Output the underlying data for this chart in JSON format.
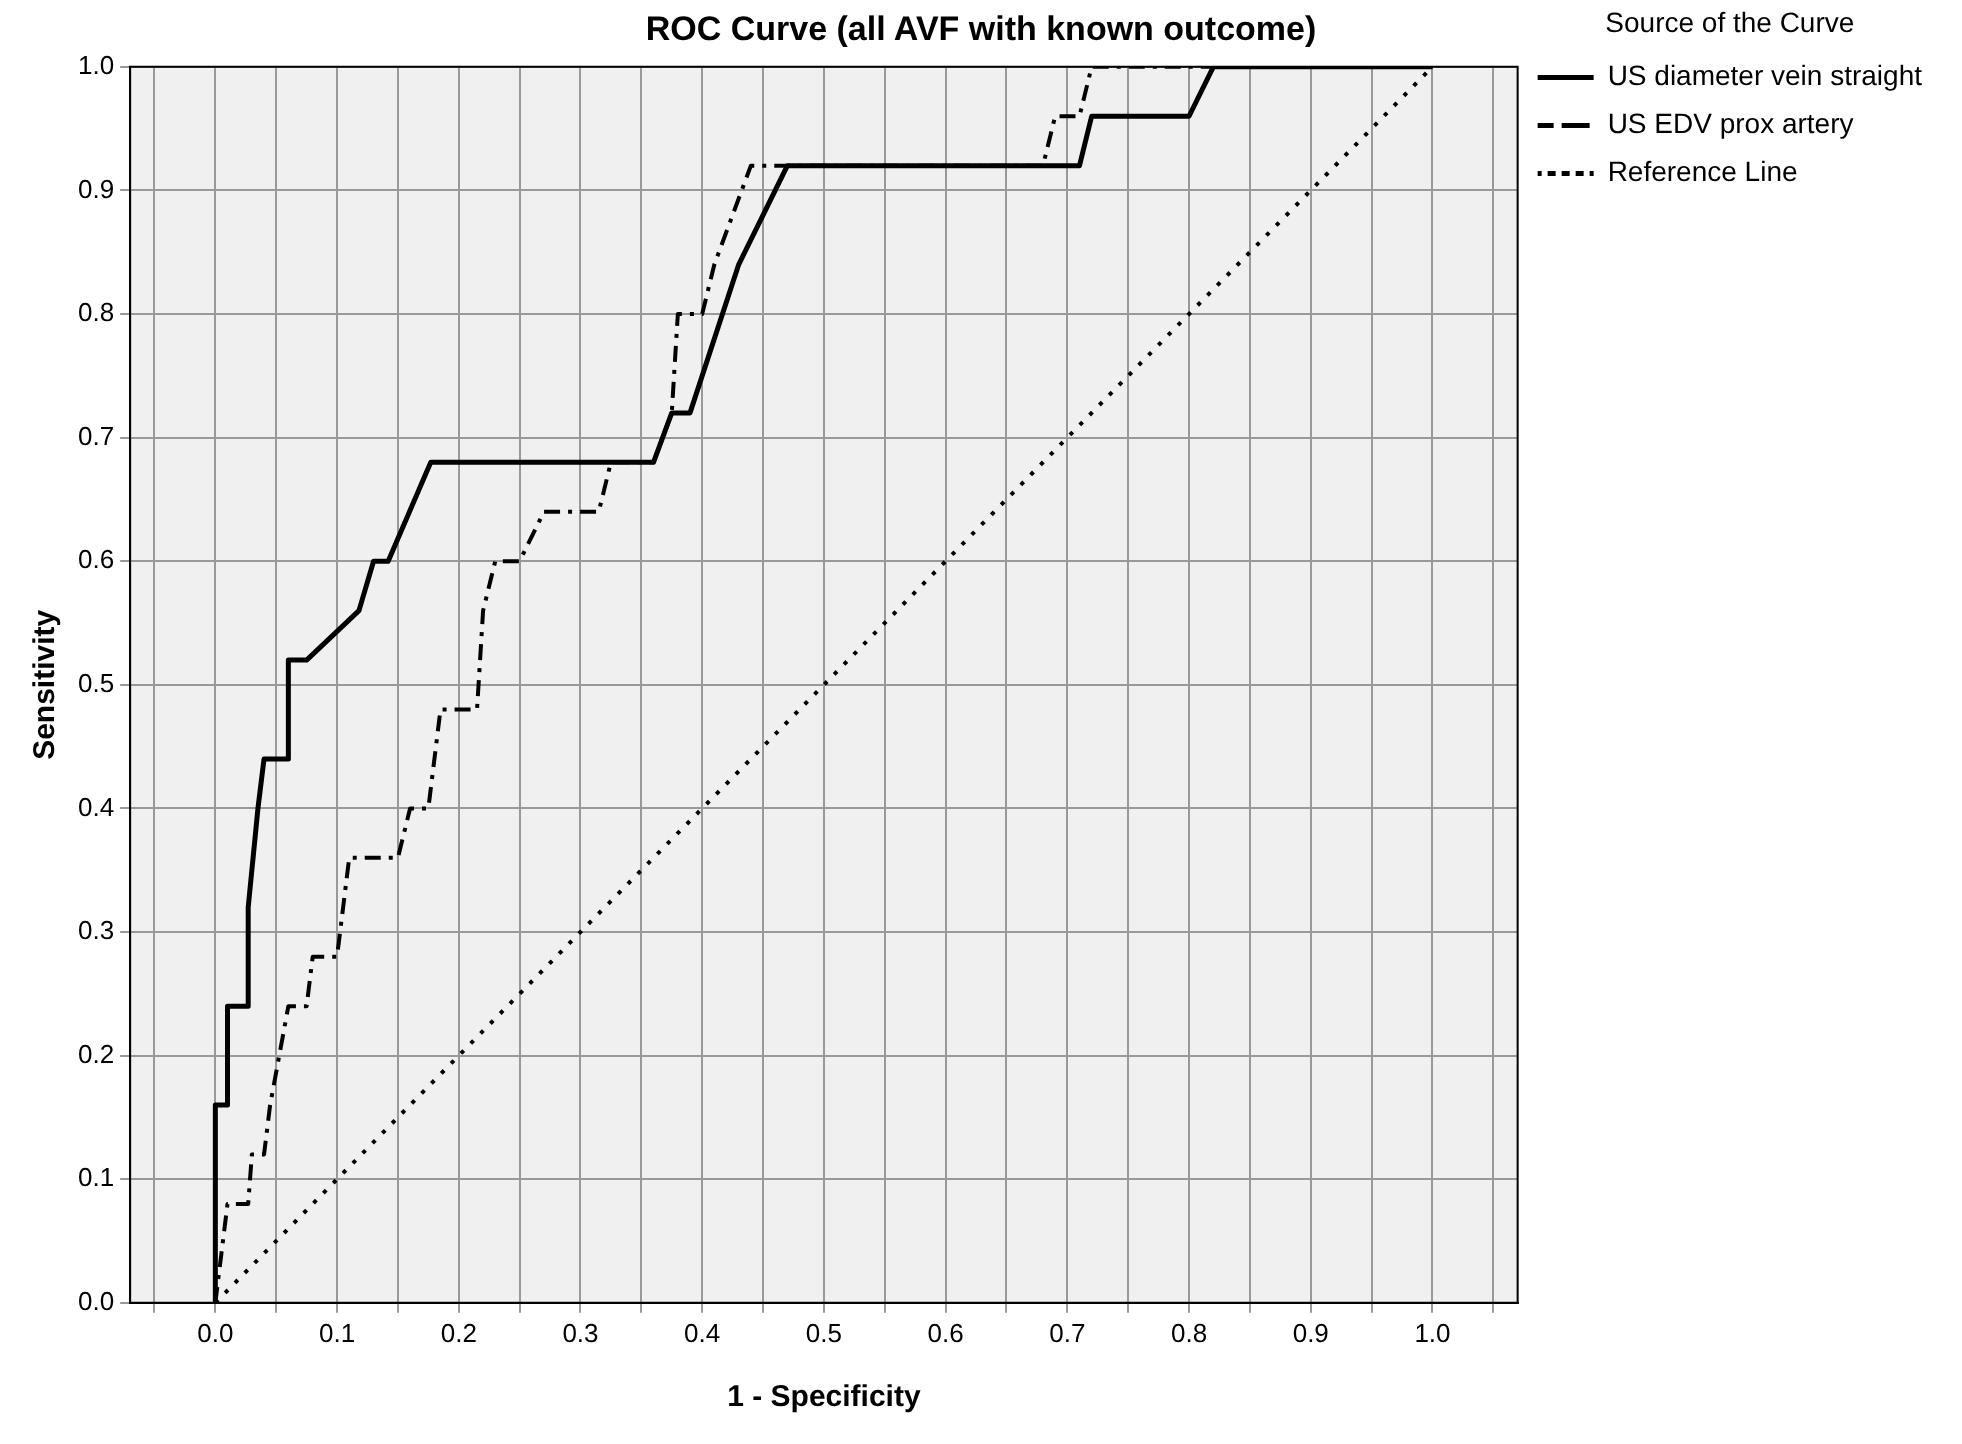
{
  "chart_data": {
    "type": "line",
    "title": "ROC Curve (all AVF with known outcome)",
    "xlabel": "1 - Specificity",
    "ylabel": "Sensitivity",
    "legend_title": "Source of the Curve",
    "legend": "right",
    "grid": true,
    "marker": "none",
    "xlim": [
      -0.07,
      1.07
    ],
    "ylim": [
      0,
      1
    ],
    "xticks": [
      {
        "value": -0.05,
        "label": null
      },
      {
        "value": 0,
        "label": "0.0"
      },
      {
        "value": 0.05,
        "label": null
      },
      {
        "value": 0.1,
        "label": "0.1"
      },
      {
        "value": 0.15,
        "label": null
      },
      {
        "value": 0.2,
        "label": "0.2"
      },
      {
        "value": 0.25,
        "label": null
      },
      {
        "value": 0.3,
        "label": "0.3"
      },
      {
        "value": 0.35,
        "label": null
      },
      {
        "value": 0.4,
        "label": "0.4"
      },
      {
        "value": 0.45,
        "label": null
      },
      {
        "value": 0.5,
        "label": "0.5"
      },
      {
        "value": 0.55,
        "label": null
      },
      {
        "value": 0.6,
        "label": "0.6"
      },
      {
        "value": 0.65,
        "label": null
      },
      {
        "value": 0.7,
        "label": "0.7"
      },
      {
        "value": 0.75,
        "label": null
      },
      {
        "value": 0.8,
        "label": "0.8"
      },
      {
        "value": 0.85,
        "label": null
      },
      {
        "value": 0.9,
        "label": "0.9"
      },
      {
        "value": 0.95,
        "label": null
      },
      {
        "value": 1,
        "label": "1.0"
      },
      {
        "value": 1.05,
        "label": null
      }
    ],
    "yticks": [
      {
        "value": 0,
        "label": "0.0"
      },
      {
        "value": 0.1,
        "label": "0.1"
      },
      {
        "value": 0.2,
        "label": "0.2"
      },
      {
        "value": 0.3,
        "label": "0.3"
      },
      {
        "value": 0.4,
        "label": "0.4"
      },
      {
        "value": 0.5,
        "label": "0.5"
      },
      {
        "value": 0.6,
        "label": "0.6"
      },
      {
        "value": 0.7,
        "label": "0.7"
      },
      {
        "value": 0.8,
        "label": "0.8"
      },
      {
        "value": 0.9,
        "label": "0.9"
      },
      {
        "value": 1,
        "label": "1.0"
      }
    ],
    "series": [
      {
        "name": "US diameter vein straight",
        "color": "#000000",
        "line_style": "solid",
        "x": [
          0,
          0,
          0.01,
          0.01,
          0.027,
          0.027,
          0.035,
          0.04,
          0.06,
          0.06,
          0.075,
          0.118,
          0.13,
          0.142,
          0.177,
          0.36,
          0.375,
          0.39,
          0.43,
          0.47,
          0.71,
          0.72,
          0.8,
          0.82,
          1
        ],
        "values": [
          0,
          0.16,
          0.16,
          0.24,
          0.24,
          0.32,
          0.4,
          0.44,
          0.44,
          0.52,
          0.52,
          0.56,
          0.6,
          0.6,
          0.68,
          0.68,
          0.72,
          0.72,
          0.84,
          0.92,
          0.92,
          0.96,
          0.96,
          1,
          1
        ]
      },
      {
        "name": "US EDV prox artery",
        "color": "#000000",
        "line_style": "dashed",
        "x": [
          0,
          0.01,
          0.027,
          0.03,
          0.04,
          0.045,
          0.06,
          0.075,
          0.08,
          0.1,
          0.11,
          0.15,
          0.16,
          0.175,
          0.185,
          0.215,
          0.22,
          0.23,
          0.25,
          0.27,
          0.315,
          0.325,
          0.36,
          0.375,
          0.38,
          0.4,
          0.41,
          0.44,
          0.46,
          0.68,
          0.69,
          0.71,
          0.72,
          1
        ],
        "values": [
          0,
          0.08,
          0.08,
          0.12,
          0.12,
          0.16,
          0.24,
          0.24,
          0.28,
          0.28,
          0.36,
          0.36,
          0.4,
          0.4,
          0.48,
          0.48,
          0.56,
          0.6,
          0.6,
          0.64,
          0.64,
          0.68,
          0.68,
          0.72,
          0.8,
          0.8,
          0.84,
          0.92,
          0.92,
          0.92,
          0.96,
          0.96,
          1,
          1
        ]
      },
      {
        "name": "Reference Line",
        "color": "#000000",
        "line_style": "dotted",
        "x": [
          0,
          1
        ],
        "values": [
          0,
          1
        ]
      }
    ]
  }
}
